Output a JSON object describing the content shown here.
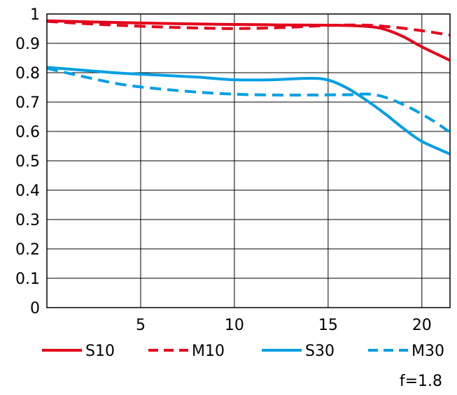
{
  "chart_data": {
    "type": "line",
    "xlim": [
      0,
      21.5
    ],
    "ylim": [
      0,
      1
    ],
    "x_ticks": [
      "5",
      "10",
      "15",
      "20"
    ],
    "x_tick_values": [
      5,
      10,
      15,
      20
    ],
    "y_ticks": [
      "0",
      "0.1",
      "0.2",
      "0.3",
      "0.4",
      "0.5",
      "0.6",
      "0.7",
      "0.8",
      "0.9",
      "1"
    ],
    "y_tick_values": [
      0,
      0.1,
      0.2,
      0.3,
      0.4,
      0.5,
      0.6,
      0.7,
      0.8,
      0.9,
      1.0
    ],
    "grid": true,
    "legend_position": "bottom",
    "series": [
      {
        "name": "S10",
        "color": "#e3001b",
        "dash": false,
        "x": [
          0,
          3,
          6,
          9,
          12,
          15,
          17,
          18,
          19,
          20,
          21.5
        ],
        "values": [
          0.977,
          0.972,
          0.968,
          0.965,
          0.963,
          0.962,
          0.958,
          0.948,
          0.923,
          0.888,
          0.842
        ]
      },
      {
        "name": "M10",
        "color": "#e3001b",
        "dash": true,
        "x": [
          0,
          3,
          6,
          9,
          11,
          13,
          15,
          17,
          18.5,
          20,
          21.5
        ],
        "values": [
          0.975,
          0.964,
          0.956,
          0.951,
          0.951,
          0.955,
          0.961,
          0.962,
          0.955,
          0.943,
          0.928
        ]
      },
      {
        "name": "S30",
        "color": "#009fe3",
        "dash": false,
        "x": [
          0,
          2,
          4,
          6,
          8,
          10,
          12,
          14,
          15,
          16,
          17,
          18,
          19,
          20,
          21.5
        ],
        "values": [
          0.818,
          0.808,
          0.798,
          0.792,
          0.785,
          0.776,
          0.776,
          0.781,
          0.775,
          0.748,
          0.708,
          0.662,
          0.611,
          0.566,
          0.523
        ]
      },
      {
        "name": "M30",
        "color": "#009fe3",
        "dash": true,
        "x": [
          0,
          2,
          4,
          6,
          8,
          10,
          12,
          14,
          16,
          17.5,
          19,
          20.5,
          21.5
        ],
        "values": [
          0.815,
          0.786,
          0.76,
          0.745,
          0.734,
          0.727,
          0.724,
          0.724,
          0.725,
          0.725,
          0.692,
          0.64,
          0.597
        ]
      }
    ]
  },
  "footnote": "f=1.8"
}
